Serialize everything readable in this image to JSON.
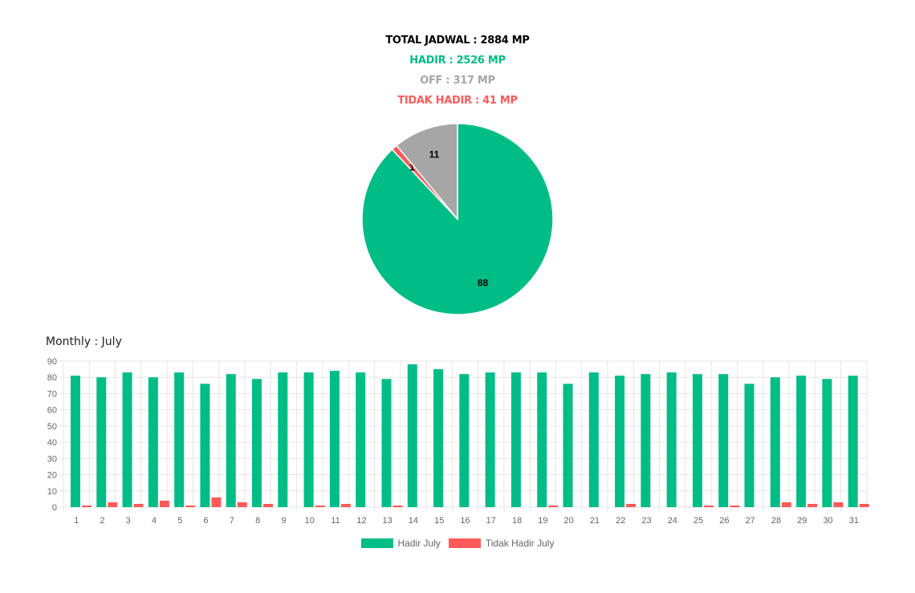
{
  "summary": {
    "total": "TOTAL JADWAL : 2884 MP",
    "hadir": "HADIR : 2526 MP",
    "off": "OFF : 317 MP",
    "tidak_hadir": "TIDAK HADIR : 41 MP"
  },
  "colors": {
    "hadir": "#00bd86",
    "off": "#a6a6a6",
    "tidak_hadir": "#ff5a5a",
    "grid": "#e6e6e6",
    "tick": "#666666"
  },
  "chart_data": [
    {
      "type": "pie",
      "slices": [
        {
          "key": "hadir",
          "value": 88,
          "label": "88"
        },
        {
          "key": "tidak_hadir",
          "value": 1,
          "label": "1"
        },
        {
          "key": "off",
          "value": 11,
          "label": "11"
        }
      ]
    },
    {
      "type": "bar",
      "title": "Monthly : July",
      "ylim": [
        0,
        90
      ],
      "yticks": [
        0,
        10,
        20,
        30,
        40,
        50,
        60,
        70,
        80,
        90
      ],
      "categories": [
        "1",
        "2",
        "3",
        "4",
        "5",
        "6",
        "7",
        "8",
        "9",
        "10",
        "11",
        "12",
        "13",
        "14",
        "15",
        "16",
        "17",
        "18",
        "19",
        "20",
        "21",
        "22",
        "23",
        "24",
        "25",
        "26",
        "27",
        "28",
        "29",
        "30",
        "31"
      ],
      "series": [
        {
          "name": "Hadir July",
          "key": "hadir",
          "values": [
            81,
            80,
            83,
            80,
            83,
            76,
            82,
            79,
            83,
            83,
            84,
            83,
            79,
            88,
            85,
            82,
            83,
            83,
            83,
            76,
            83,
            81,
            82,
            83,
            82,
            82,
            76,
            80,
            81,
            79,
            81
          ]
        },
        {
          "name": "Tidak Hadir July",
          "key": "tidak_hadir",
          "values": [
            1,
            3,
            2,
            4,
            1,
            6,
            3,
            2,
            0,
            1,
            2,
            0,
            1,
            0,
            0,
            0,
            0,
            0,
            1,
            0,
            0,
            2,
            0,
            0,
            1,
            1,
            0,
            3,
            2,
            3,
            2
          ]
        }
      ],
      "legend": "bottom"
    }
  ]
}
